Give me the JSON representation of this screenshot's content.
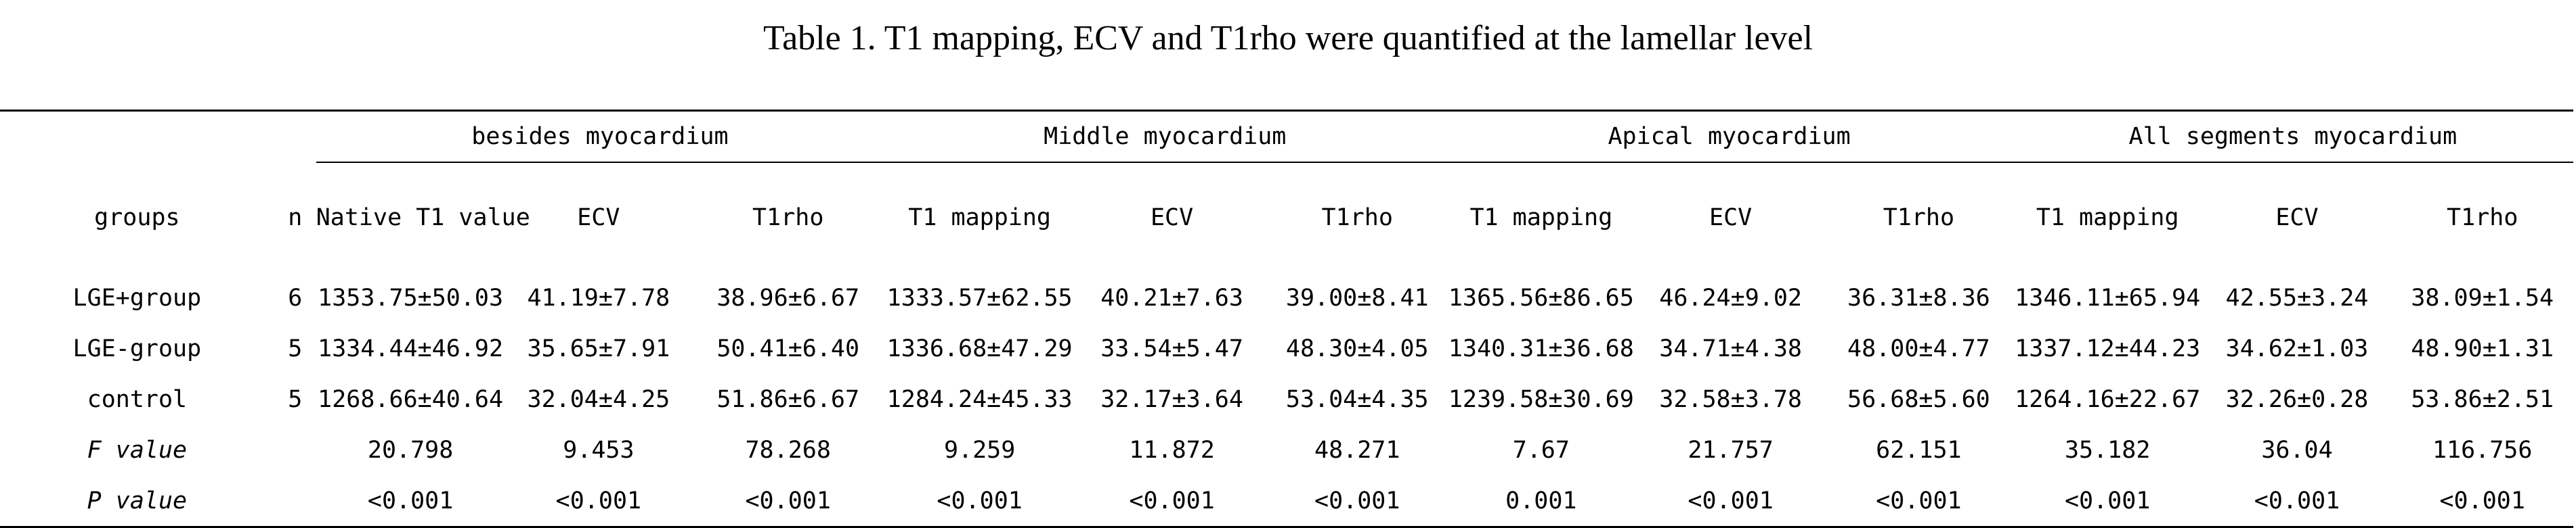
{
  "title": "Table 1. T1 mapping, ECV and T1rho were quantified at the lamellar level",
  "table": {
    "groups_header": "groups",
    "n_header": "n",
    "regions": [
      {
        "name": "besides myocardium",
        "columns": [
          "Native T1 value",
          "ECV",
          "T1rho"
        ]
      },
      {
        "name": "Middle myocardium",
        "columns": [
          "T1 mapping",
          "ECV",
          "T1rho"
        ]
      },
      {
        "name": "Apical myocardium",
        "columns": [
          "T1 mapping",
          "ECV",
          "T1rho"
        ]
      },
      {
        "name": "All segments myocardium",
        "columns": [
          "T1 mapping",
          "ECV",
          "T1rho"
        ]
      }
    ],
    "rows": [
      {
        "group": "LGE+group",
        "n": "6",
        "italic": false,
        "values": [
          "1353.75±50.03",
          "41.19±7.78",
          "38.96±6.67",
          "1333.57±62.55",
          "40.21±7.63",
          "39.00±8.41",
          "1365.56±86.65",
          "46.24±9.02",
          "36.31±8.36",
          "1346.11±65.94",
          "42.55±3.24",
          "38.09±1.54"
        ]
      },
      {
        "group": "LGE-group",
        "n": "5",
        "italic": false,
        "values": [
          "1334.44±46.92",
          "35.65±7.91",
          "50.41±6.40",
          "1336.68±47.29",
          "33.54±5.47",
          "48.30±4.05",
          "1340.31±36.68",
          "34.71±4.38",
          "48.00±4.77",
          "1337.12±44.23",
          "34.62±1.03",
          "48.90±1.31"
        ]
      },
      {
        "group": "control",
        "n": "5",
        "italic": false,
        "values": [
          "1268.66±40.64",
          "32.04±4.25",
          "51.86±6.67",
          "1284.24±45.33",
          "32.17±3.64",
          "53.04±4.35",
          "1239.58±30.69",
          "32.58±3.78",
          "56.68±5.60",
          "1264.16±22.67",
          "32.26±0.28",
          "53.86±2.51"
        ]
      },
      {
        "group": "F value",
        "n": "",
        "italic": true,
        "values": [
          "20.798",
          "9.453",
          "78.268",
          "9.259",
          "11.872",
          "48.271",
          "7.67",
          "21.757",
          "62.151",
          "35.182",
          "36.04",
          "116.756"
        ]
      },
      {
        "group": "P value",
        "n": "",
        "italic": true,
        "values": [
          "<0.001",
          "<0.001",
          "<0.001",
          "<0.001",
          "<0.001",
          "<0.001",
          "0.001",
          "<0.001",
          "<0.001",
          "<0.001",
          "<0.001",
          "<0.001"
        ]
      }
    ]
  }
}
